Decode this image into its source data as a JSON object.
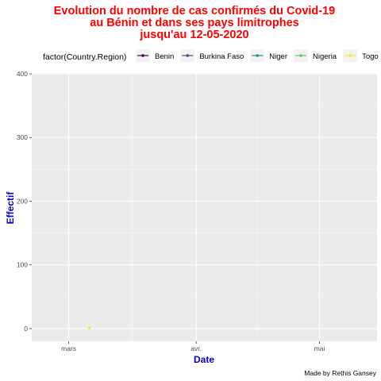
{
  "chart_data": {
    "type": "line",
    "title_lines": [
      "Evolution du nombre de cas confirmés du Covid-19",
      "au Bénin et dans ses  pays limitrophes",
      "jusqu'au 12-05-2020"
    ],
    "xlabel": "Date",
    "ylabel": "Effectif",
    "caption": "Made by Rethis Gansey",
    "legend_title": "factor(Country.Region)",
    "legend_position": "top",
    "grid": true,
    "x_ticks": [
      {
        "label": "mars",
        "date": "2020-03-01"
      },
      {
        "label": "avr.",
        "date": "2020-04-01"
      },
      {
        "label": "mai",
        "date": "2020-05-01"
      }
    ],
    "xlim": [
      "2020-02-21",
      "2020-05-15"
    ],
    "y_ticks": [
      0,
      100,
      200,
      300,
      400
    ],
    "ylim": [
      -20,
      400
    ],
    "series": [
      {
        "name": "Benin",
        "color": "#440154",
        "points": []
      },
      {
        "name": "Burkina Faso",
        "color": "#3b528b",
        "points": []
      },
      {
        "name": "Niger",
        "color": "#21908d",
        "points": []
      },
      {
        "name": "Nigeria",
        "color": "#5dc863",
        "points": []
      },
      {
        "name": "Togo",
        "color": "#fde725",
        "points": [
          {
            "x": "2020-03-06",
            "y": 1
          }
        ]
      }
    ]
  }
}
